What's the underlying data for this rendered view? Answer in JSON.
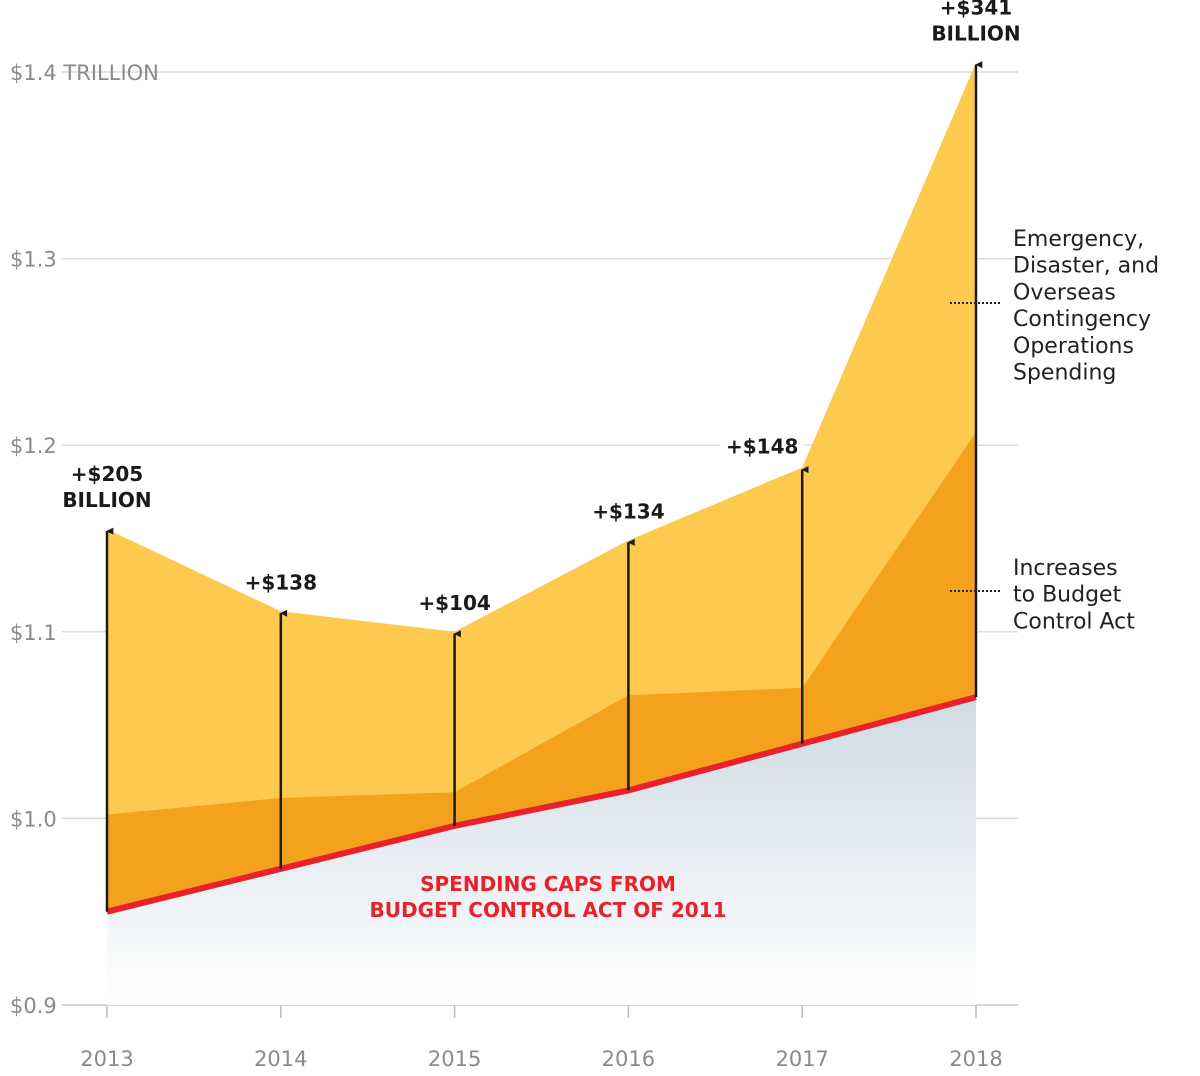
{
  "chart_data": {
    "type": "area",
    "title": "",
    "xlabel": "",
    "ylabel": "",
    "categories": [
      "2013",
      "2014",
      "2015",
      "2016",
      "2017",
      "2018"
    ],
    "ylim": [
      0.9,
      1.4
    ],
    "y_ticks": [
      {
        "value": 1.4,
        "label": "$1.4 TRILLION"
      },
      {
        "value": 1.3,
        "label": "$1.3"
      },
      {
        "value": 1.2,
        "label": "$1.2"
      },
      {
        "value": 1.1,
        "label": "$1.1"
      },
      {
        "value": 1.0,
        "label": "$1.0"
      },
      {
        "value": 0.9,
        "label": "$0.9"
      }
    ],
    "grid": true,
    "series": [
      {
        "name": "SPENDING CAPS FROM BUDGET CONTROL ACT OF 2011",
        "label_lines": [
          "SPENDING CAPS FROM",
          "BUDGET CONTROL ACT OF 2011"
        ],
        "color": "#e8212a",
        "values": [
          0.95,
          0.973,
          0.996,
          1.015,
          1.04,
          1.065
        ]
      },
      {
        "name": "Increases to Budget Control Act",
        "label_lines": [
          "Increases",
          "to Budget",
          "Control Act"
        ],
        "color": "#f4a21e",
        "top_values": [
          1.002,
          1.011,
          1.014,
          1.066,
          1.07,
          1.207
        ]
      },
      {
        "name": "Emergency, Disaster, and Overseas Contingency Operations Spending",
        "label_lines": [
          "Emergency,",
          "Disaster, and",
          "Overseas",
          "Contingency",
          "Operations",
          "Spending"
        ],
        "color": "#fdc94f",
        "top_values": [
          1.155,
          1.111,
          1.1,
          1.149,
          1.188,
          1.405
        ]
      }
    ],
    "annotations": [
      {
        "lines": [
          "+$205",
          "BILLION"
        ]
      },
      {
        "lines": [
          "+$138"
        ]
      },
      {
        "lines": [
          "+$104"
        ]
      },
      {
        "lines": [
          "+$134"
        ]
      },
      {
        "lines": [
          "+$148"
        ]
      },
      {
        "lines": [
          "+$341",
          "BILLION"
        ]
      }
    ]
  }
}
